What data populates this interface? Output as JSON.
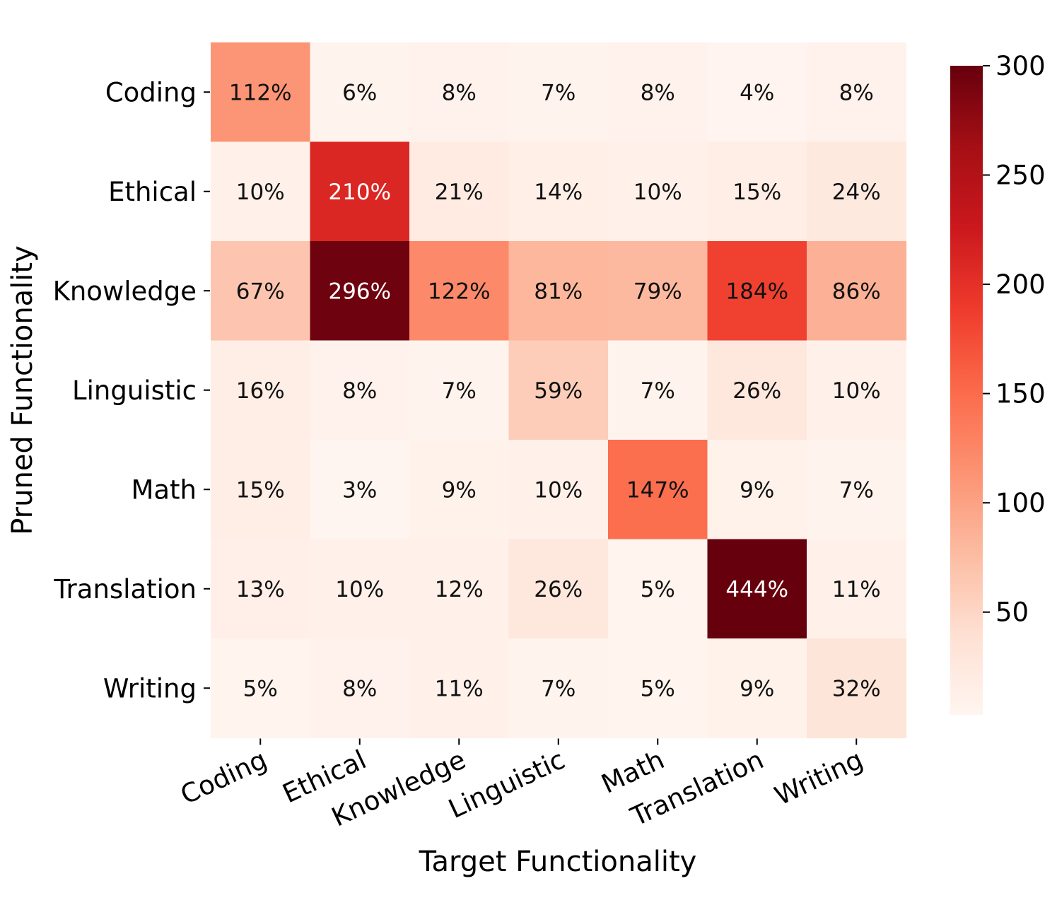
{
  "chart_data": {
    "type": "heatmap",
    "xlabel": "Target Functionality",
    "ylabel": "Pruned Functionality",
    "x_categories": [
      "Coding",
      "Ethical",
      "Knowledge",
      "Linguistic",
      "Math",
      "Translation",
      "Writing"
    ],
    "y_categories": [
      "Coding",
      "Ethical",
      "Knowledge",
      "Linguistic",
      "Math",
      "Translation",
      "Writing"
    ],
    "values": [
      [
        112,
        6,
        8,
        7,
        8,
        4,
        8
      ],
      [
        10,
        210,
        21,
        14,
        10,
        15,
        24
      ],
      [
        67,
        296,
        122,
        81,
        79,
        184,
        86
      ],
      [
        16,
        8,
        7,
        59,
        7,
        26,
        10
      ],
      [
        15,
        3,
        9,
        10,
        147,
        9,
        7
      ],
      [
        13,
        10,
        12,
        26,
        5,
        444,
        11
      ],
      [
        5,
        8,
        11,
        7,
        5,
        9,
        32
      ]
    ],
    "value_suffix": "%",
    "colorbar": {
      "colormap": "Reds",
      "vmin": 3,
      "vmax": 300,
      "ticks": [
        50,
        100,
        150,
        200,
        250,
        300
      ]
    },
    "colors": {
      "low": "#fff5f0",
      "high": "#67000d"
    }
  }
}
